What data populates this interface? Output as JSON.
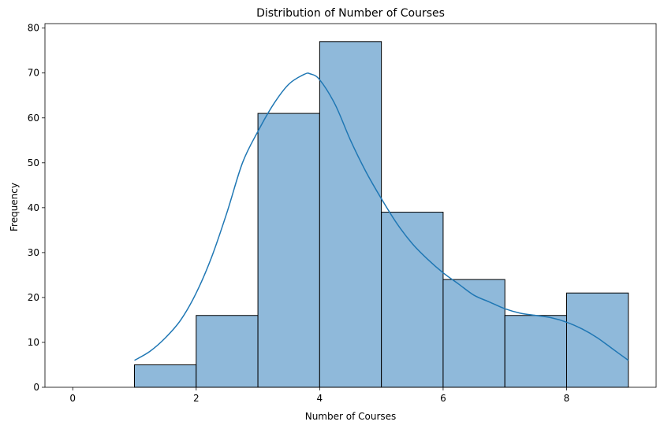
{
  "chart_data": {
    "type": "bar",
    "title": "Distribution of Number of Courses",
    "xlabel": "Number of Courses",
    "ylabel": "Frequency",
    "xlim": [
      -0.45,
      9.45
    ],
    "ylim": [
      0,
      81
    ],
    "xticks": [
      0,
      2,
      4,
      6,
      8
    ],
    "yticks": [
      0,
      10,
      20,
      30,
      40,
      50,
      60,
      70,
      80
    ],
    "bins": [
      {
        "x0": 0,
        "x1": 1,
        "value": 0
      },
      {
        "x0": 1,
        "x1": 2,
        "value": 5
      },
      {
        "x0": 2,
        "x1": 3,
        "value": 16
      },
      {
        "x0": 3,
        "x1": 4,
        "value": 61
      },
      {
        "x0": 4,
        "x1": 5,
        "value": 77
      },
      {
        "x0": 5,
        "x1": 6,
        "value": 39
      },
      {
        "x0": 6,
        "x1": 7,
        "value": 24
      },
      {
        "x0": 7,
        "x1": 8,
        "value": 16
      },
      {
        "x0": 8,
        "x1": 9,
        "value": 21
      }
    ],
    "kde": {
      "x": [
        1.0,
        1.25,
        1.5,
        1.75,
        2.0,
        2.25,
        2.5,
        2.75,
        3.0,
        3.25,
        3.5,
        3.75,
        3.85,
        4.0,
        4.25,
        4.5,
        4.75,
        5.0,
        5.25,
        5.5,
        5.75,
        6.0,
        6.25,
        6.5,
        6.75,
        7.0,
        7.25,
        7.5,
        7.75,
        8.0,
        8.25,
        8.5,
        8.75,
        9.0
      ],
      "y": [
        6,
        8,
        11,
        15,
        21,
        29,
        39,
        50,
        57,
        63,
        67.5,
        69.7,
        69.8,
        68.5,
        63,
        55,
        48,
        42,
        36.5,
        32,
        28.5,
        25.5,
        23,
        20.5,
        19,
        17.5,
        16.5,
        16,
        15.5,
        14.5,
        13,
        11,
        8.5,
        6
      ]
    },
    "colors": {
      "bar_fill": "#8fb9da",
      "bar_edge": "#000000",
      "kde_line": "#1f77b4"
    },
    "grid": false,
    "legend": "none"
  }
}
